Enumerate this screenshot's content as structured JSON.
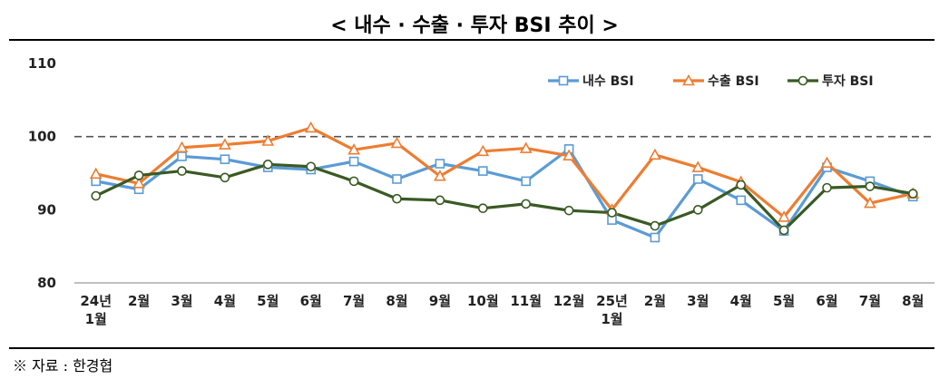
{
  "title": "< 내수 · 수출 · 투자 BSI 추이 >",
  "source": "※ 자료 : 한경협",
  "chart_data": {
    "type": "line",
    "categories": [
      [
        "24년",
        "1월"
      ],
      [
        "2월"
      ],
      [
        "3월"
      ],
      [
        "4월"
      ],
      [
        "5월"
      ],
      [
        "6월"
      ],
      [
        "7월"
      ],
      [
        "8월"
      ],
      [
        "9월"
      ],
      [
        "10월"
      ],
      [
        "11월"
      ],
      [
        "12월"
      ],
      [
        "25년",
        "1월"
      ],
      [
        "2월"
      ],
      [
        "3월"
      ],
      [
        "4월"
      ],
      [
        "5월"
      ],
      [
        "6월"
      ],
      [
        "7월"
      ],
      [
        "8월"
      ]
    ],
    "ylim": [
      80,
      110
    ],
    "yticks": [
      80,
      90,
      100,
      110
    ],
    "reference_line": 100,
    "legend_position": "top-right",
    "series": [
      {
        "name": "내수 BSI",
        "color": "#5b9bd5",
        "marker": "square",
        "values": [
          93.9,
          92.8,
          97.3,
          96.9,
          95.8,
          95.5,
          96.6,
          94.2,
          96.3,
          95.3,
          93.9,
          98.3,
          88.6,
          86.2,
          94.2,
          91.3,
          87.1,
          95.8,
          93.9,
          91.8
        ]
      },
      {
        "name": "수출 BSI",
        "color": "#ed7d31",
        "marker": "triangle",
        "values": [
          94.9,
          93.6,
          98.5,
          98.9,
          99.4,
          101.2,
          98.2,
          99.1,
          94.6,
          98.0,
          98.4,
          97.4,
          90.0,
          97.5,
          95.8,
          93.8,
          89.0,
          96.4,
          90.9,
          92.2
        ]
      },
      {
        "name": "투자 BSI",
        "color": "#3a5a24",
        "marker": "circle",
        "values": [
          91.9,
          94.7,
          95.3,
          94.4,
          96.2,
          95.9,
          93.9,
          91.5,
          91.3,
          90.2,
          90.8,
          89.9,
          89.6,
          87.8,
          90.0,
          93.4,
          87.2,
          93.0,
          93.2,
          92.2
        ]
      }
    ]
  }
}
